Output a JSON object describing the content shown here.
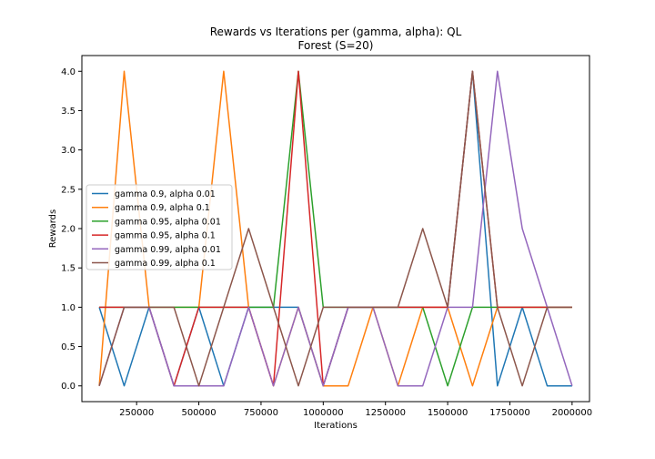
{
  "chart_data": {
    "type": "line",
    "title": "Rewards vs Iterations per (gamma, alpha): QL",
    "subtitle": "Forest (S=20)",
    "xlabel": "Iterations",
    "ylabel": "Rewards",
    "xlim": [
      30000,
      2070000
    ],
    "ylim": [
      -0.2,
      4.2
    ],
    "xticks": [
      250000,
      500000,
      750000,
      1000000,
      1250000,
      1500000,
      1750000,
      2000000
    ],
    "xtick_labels": [
      "250000",
      "500000",
      "750000",
      "1000000",
      "1250000",
      "1500000",
      "1750000",
      "2000000"
    ],
    "yticks": [
      0.0,
      0.5,
      1.0,
      1.5,
      2.0,
      2.5,
      3.0,
      3.5,
      4.0
    ],
    "ytick_labels": [
      "0.0",
      "0.5",
      "1.0",
      "1.5",
      "2.0",
      "2.5",
      "3.0",
      "3.5",
      "4.0"
    ],
    "grid": false,
    "legend_position": "center-left",
    "x": [
      100000,
      200000,
      300000,
      400000,
      500000,
      600000,
      700000,
      800000,
      900000,
      1000000,
      1100000,
      1200000,
      1300000,
      1400000,
      1500000,
      1600000,
      1700000,
      1800000,
      1900000,
      2000000
    ],
    "series": [
      {
        "name": "gamma 0.9, alpha 0.01",
        "color": "#1f77b4",
        "values": [
          1,
          0,
          1,
          0,
          1,
          0,
          1,
          1,
          1,
          0,
          1,
          1,
          1,
          1,
          1,
          4,
          0,
          1,
          0,
          0
        ]
      },
      {
        "name": "gamma 0.9, alpha 0.1",
        "color": "#ff7f0e",
        "values": [
          0,
          4,
          1,
          1,
          1,
          4,
          1,
          0,
          1,
          0,
          0,
          1,
          0,
          1,
          1,
          0,
          1,
          1,
          1,
          1
        ]
      },
      {
        "name": "gamma 0.95, alpha 0.01",
        "color": "#2ca02c",
        "values": [
          1,
          1,
          1,
          1,
          1,
          1,
          1,
          1,
          4,
          1,
          1,
          1,
          1,
          1,
          0,
          1,
          1,
          1,
          1,
          1
        ]
      },
      {
        "name": "gamma 0.95, alpha 0.1",
        "color": "#d62728",
        "values": [
          1,
          1,
          1,
          0,
          1,
          1,
          1,
          0,
          4,
          0,
          1,
          1,
          1,
          1,
          1,
          4,
          1,
          1,
          1,
          1
        ]
      },
      {
        "name": "gamma 0.99, alpha 0.01",
        "color": "#9467bd",
        "values": [
          0,
          1,
          1,
          0,
          0,
          0,
          1,
          0,
          1,
          0,
          1,
          1,
          0,
          0,
          1,
          1,
          4,
          2,
          1,
          0
        ]
      },
      {
        "name": "gamma 0.99, alpha 0.1",
        "color": "#8c564b",
        "values": [
          0,
          1,
          1,
          1,
          0,
          1,
          2,
          1,
          0,
          1,
          1,
          1,
          1,
          2,
          1,
          4,
          1,
          0,
          1,
          1
        ]
      }
    ]
  }
}
